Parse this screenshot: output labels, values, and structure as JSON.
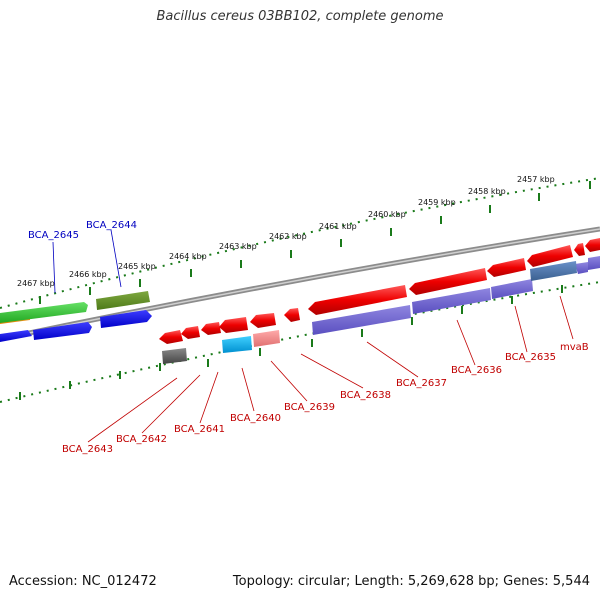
{
  "title": "Bacillus cereus 03BB102, complete genome",
  "footer": {
    "accession": "Accession: NC_012472",
    "summary": "Topology: circular; Length: 5,269,628 bp; Genes: 5,544"
  },
  "scale_ticks": [
    "2467 kbp",
    "2466 kbp",
    "2465 kbp",
    "2464 kbp",
    "2463 kbp",
    "2462 kbp",
    "2461 kbp",
    "2460 kbp",
    "2459 kbp",
    "2458 kbp",
    "2457 kbp"
  ],
  "gene_labels_forward": [
    "BCA_2645",
    "BCA_2644"
  ],
  "gene_labels_reverse": [
    "BCA_2643",
    "BCA_2642",
    "BCA_2641",
    "BCA_2640",
    "BCA_2639",
    "BCA_2638",
    "BCA_2637",
    "BCA_2636",
    "BCA_2635",
    "mvaB"
  ],
  "colors": {
    "forward_label": "#0000c0",
    "reverse_label": "#c00000",
    "tick": "#1a7a1a",
    "backbone": "#7a7a7a"
  }
}
